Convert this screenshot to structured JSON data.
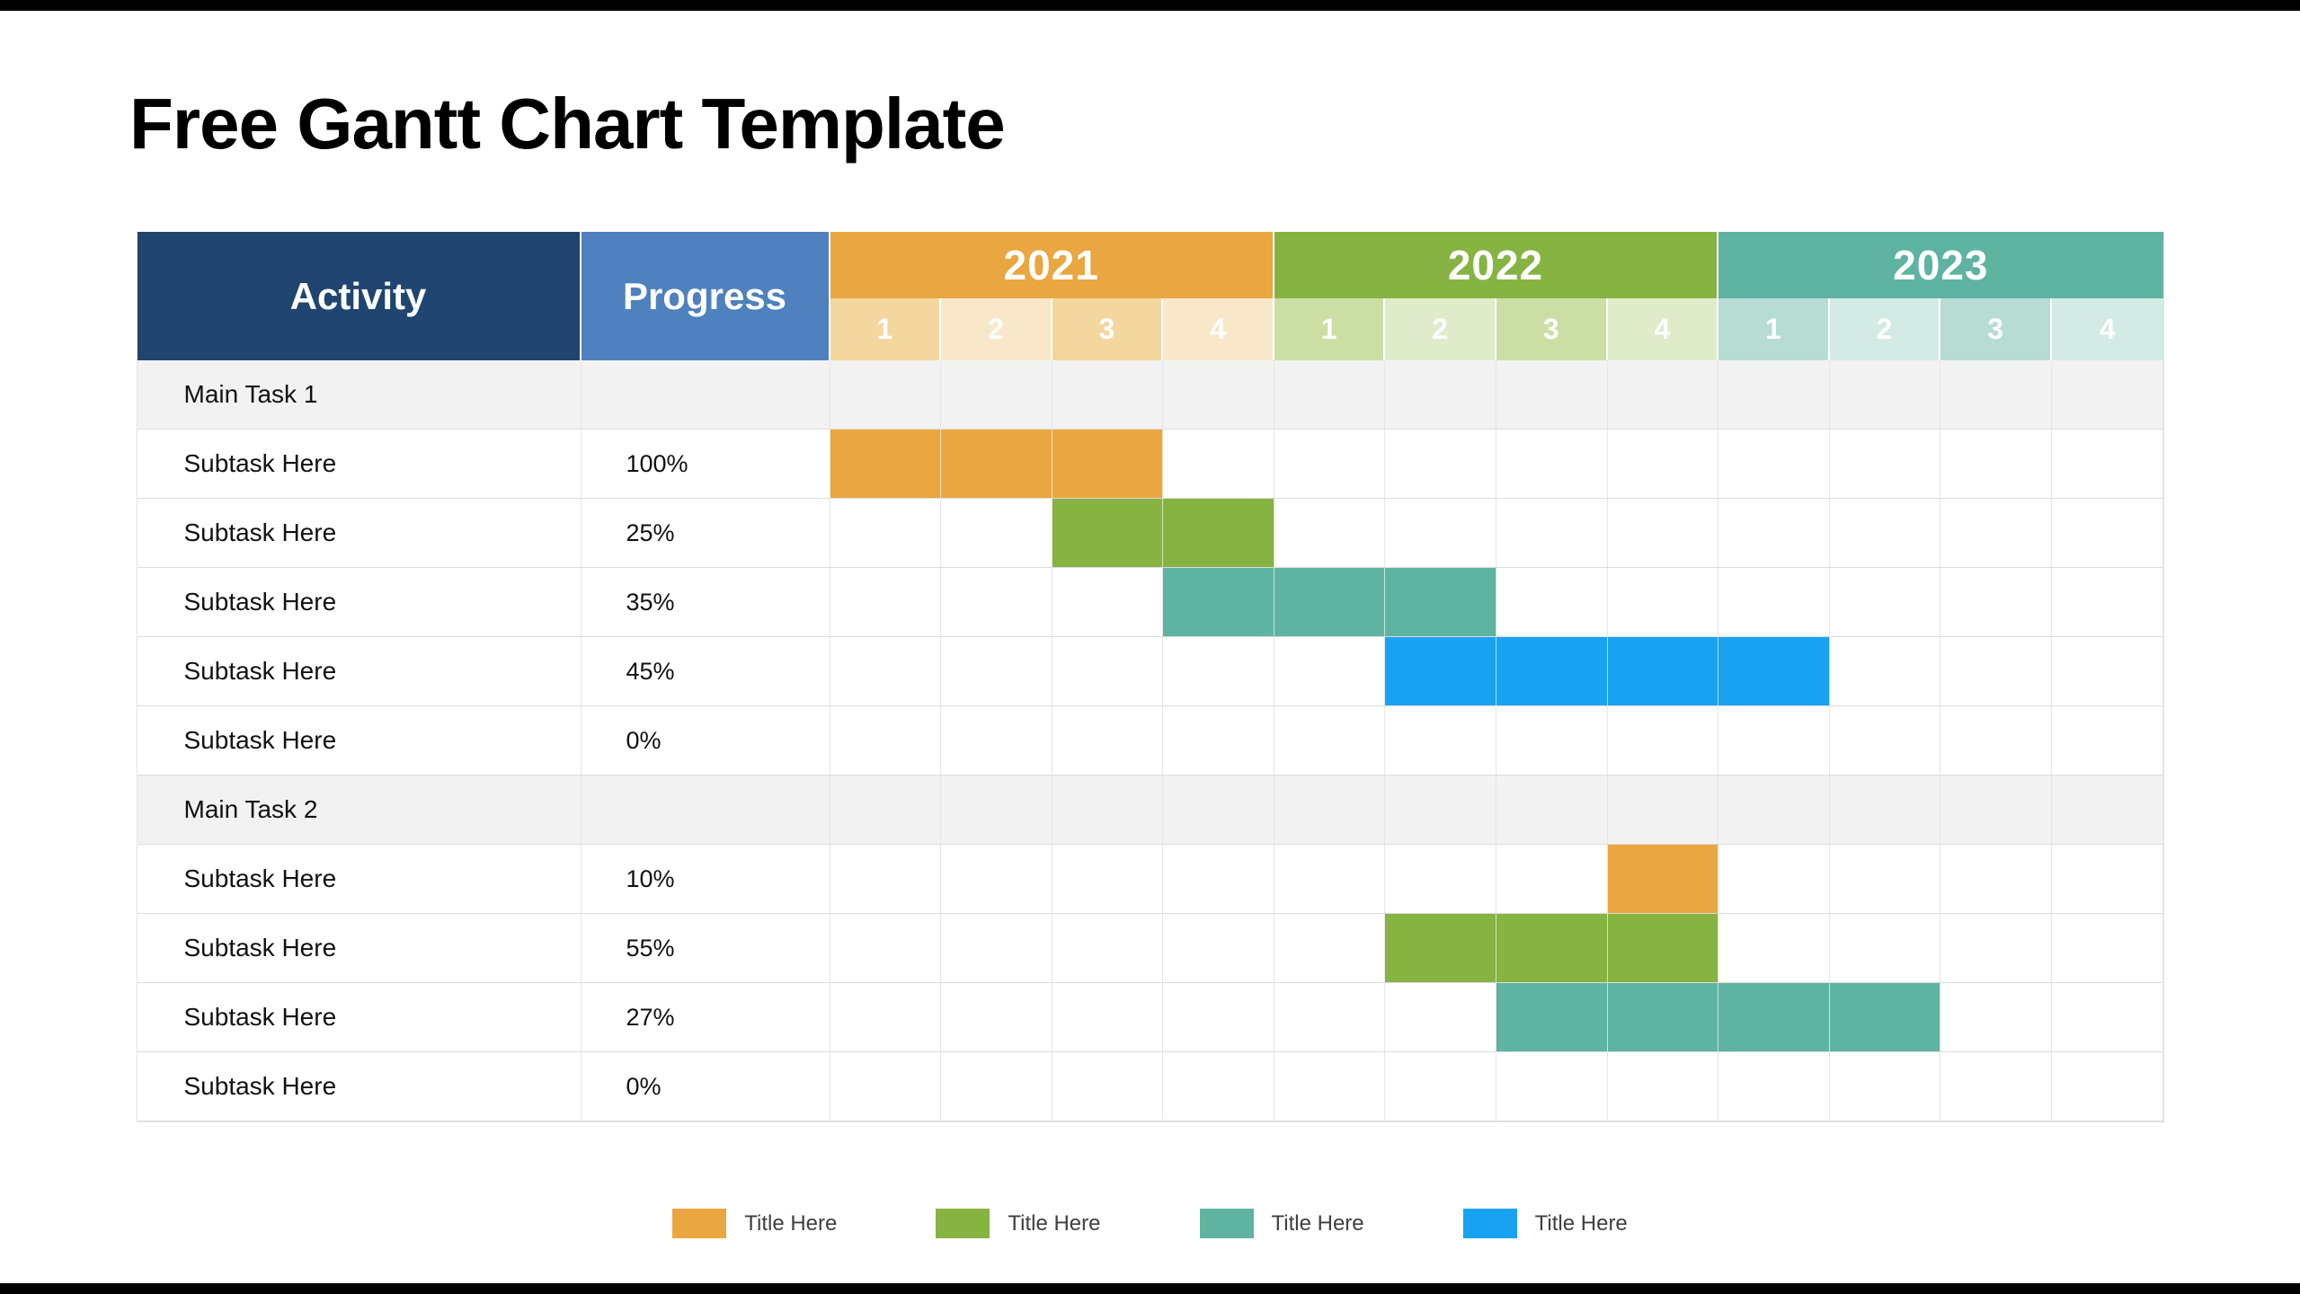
{
  "page": {
    "title": "Free Gantt Chart Template"
  },
  "chart_data": {
    "type": "gantt",
    "title": "Free Gantt Chart Template",
    "columns": {
      "activity": "Activity",
      "progress": "Progress"
    },
    "palette": {
      "navy": "#1F4570",
      "blue_header": "#4E81BD",
      "orange": "#EAA640",
      "green": "#87B343",
      "teal": "#5FB3A1",
      "blue": "#18A2F2",
      "group_row_bg": "#F2F2F2",
      "grid_line": "#DCDCDC"
    },
    "years": [
      {
        "label": "2021",
        "color": "#EAA640",
        "tint_strong": "#F3D79F",
        "tint_light": "#F8E8C9",
        "quarters": [
          "1",
          "2",
          "3",
          "4"
        ]
      },
      {
        "label": "2022",
        "color": "#87B343",
        "tint_strong": "#CBDEA4",
        "tint_light": "#E0EBC9",
        "quarters": [
          "1",
          "2",
          "3",
          "4"
        ]
      },
      {
        "label": "2023",
        "color": "#5FB3A1",
        "tint_strong": "#B6DCD3",
        "tint_light": "#D4EAE4",
        "quarters": [
          "1",
          "2",
          "3",
          "4"
        ]
      }
    ],
    "rows": [
      {
        "kind": "group",
        "label": "Main Task 1",
        "progress": ""
      },
      {
        "kind": "task",
        "label": "Subtask Here",
        "progress": "100%",
        "bar": {
          "start": 0,
          "span": 3,
          "color": "orange"
        }
      },
      {
        "kind": "task",
        "label": "Subtask Here",
        "progress": "25%",
        "bar": {
          "start": 2,
          "span": 2,
          "color": "green"
        }
      },
      {
        "kind": "task",
        "label": "Subtask Here",
        "progress": "35%",
        "bar": {
          "start": 3,
          "span": 3,
          "color": "teal"
        }
      },
      {
        "kind": "task",
        "label": "Subtask Here",
        "progress": "45%",
        "bar": {
          "start": 5,
          "span": 4,
          "color": "blue"
        }
      },
      {
        "kind": "task",
        "label": "Subtask Here",
        "progress": "0%",
        "bar": null
      },
      {
        "kind": "group",
        "label": "Main Task 2",
        "progress": ""
      },
      {
        "kind": "task",
        "label": "Subtask Here",
        "progress": "10%",
        "bar": {
          "start": 7,
          "span": 1,
          "color": "orange"
        }
      },
      {
        "kind": "task",
        "label": "Subtask Here",
        "progress": "55%",
        "bar": {
          "start": 5,
          "span": 3,
          "color": "green"
        }
      },
      {
        "kind": "task",
        "label": "Subtask Here",
        "progress": "27%",
        "bar": {
          "start": 6,
          "span": 4,
          "color": "teal"
        }
      },
      {
        "kind": "task",
        "label": "Subtask Here",
        "progress": "0%",
        "bar": null
      }
    ],
    "legend": [
      {
        "label": "Title Here",
        "color": "#EAA640"
      },
      {
        "label": "Title Here",
        "color": "#87B343"
      },
      {
        "label": "Title Here",
        "color": "#5FB3A1"
      },
      {
        "label": "Title Here",
        "color": "#18A2F2"
      }
    ]
  }
}
